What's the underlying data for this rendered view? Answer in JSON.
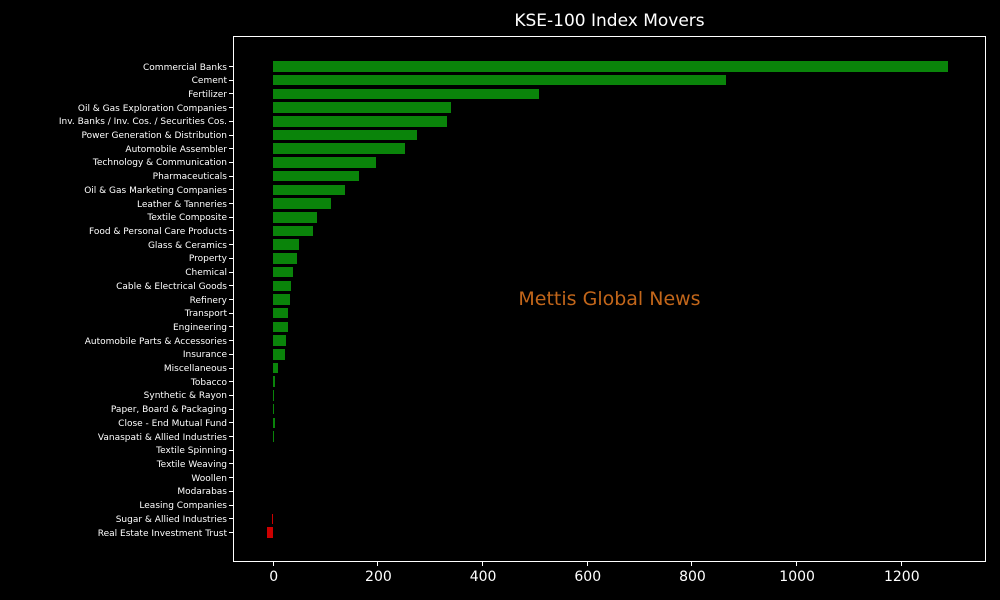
{
  "title": "KSE-100 Index Movers",
  "watermark": "Mettis Global News",
  "colors": {
    "background": "#000000",
    "positive_bar": "#0a840a",
    "negative_bar": "#cc0000",
    "frame": "#ffffff",
    "text": "#ffffff",
    "watermark": "#c2661a"
  },
  "chart_data": {
    "type": "bar",
    "orientation": "horizontal",
    "title": "KSE-100 Index Movers",
    "xlabel": "",
    "ylabel": "",
    "grid": false,
    "xlim": [
      -75,
      1358
    ],
    "xticks": [
      0,
      200,
      400,
      600,
      800,
      1000,
      1200
    ],
    "categories": [
      "Commercial Banks",
      "Cement",
      "Fertilizer",
      "Oil & Gas Exploration Companies",
      "Inv. Banks / Inv. Cos. / Securities Cos.",
      "Power Generation & Distribution",
      "Automobile Assembler",
      "Technology & Communication",
      "Pharmaceuticals",
      "Oil & Gas Marketing Companies",
      "Leather & Tanneries",
      "Textile Composite",
      "Food & Personal Care Products",
      "Glass & Ceramics",
      "Property",
      "Chemical",
      "Cable & Electrical Goods",
      "Refinery",
      "Transport",
      "Engineering",
      "Automobile Parts & Accessories",
      "Insurance",
      "Miscellaneous",
      "Tobacco",
      "Synthetic & Rayon",
      "Paper, Board & Packaging",
      "Close - End Mutual Fund",
      "Vanaspati & Allied Industries",
      "Textile Spinning",
      "Textile Weaving",
      "Woollen",
      "Modarabas",
      "Leasing Companies",
      "Sugar & Allied Industries",
      "Real Estate Investment Trust"
    ],
    "values": [
      1290,
      865,
      507,
      340,
      332,
      274,
      252,
      197,
      163,
      138,
      111,
      84,
      76,
      49,
      46,
      37,
      33,
      32,
      28,
      28,
      25,
      22,
      9,
      4,
      2,
      2,
      3,
      2,
      0,
      0,
      0,
      0,
      0,
      -2,
      -11
    ]
  }
}
